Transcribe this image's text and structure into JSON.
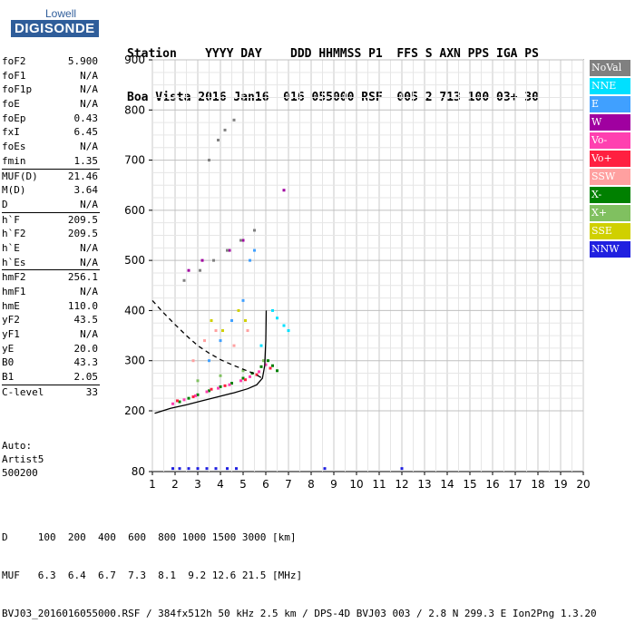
{
  "logo": {
    "top": "Lowell",
    "main": "DIGISONDE"
  },
  "header": {
    "labels": "Station    YYYY DAY    DDD HHMMSS P1  FFS S AXN PPS IGA PS",
    "values": "Boa Vista 2016 Jan16  016 055000 RSF  005 2 713 100 03+ 30"
  },
  "params": [
    {
      "label": "foF2",
      "value": "5.900"
    },
    {
      "label": "foF1",
      "value": "N/A"
    },
    {
      "label": "foF1p",
      "value": "N/A"
    },
    {
      "label": "foE",
      "value": "N/A"
    },
    {
      "label": "foEp",
      "value": "0.43"
    },
    {
      "label": "fxI",
      "value": "6.45"
    },
    {
      "label": "foEs",
      "value": "N/A"
    },
    {
      "label": "fmin",
      "value": "1.35"
    },
    {
      "label": "MUF(D)",
      "value": "21.46",
      "sep": true
    },
    {
      "label": "M(D)",
      "value": "3.64"
    },
    {
      "label": "D",
      "value": "N/A"
    },
    {
      "label": "h`F",
      "value": "209.5",
      "sep": true
    },
    {
      "label": "h`F2",
      "value": "209.5"
    },
    {
      "label": "h`E",
      "value": "N/A"
    },
    {
      "label": "h`Es",
      "value": "N/A"
    },
    {
      "label": "hmF2",
      "value": "256.1",
      "sep": true
    },
    {
      "label": "hmF1",
      "value": "N/A"
    },
    {
      "label": "hmE",
      "value": "110.0"
    },
    {
      "label": "yF2",
      "value": "43.5"
    },
    {
      "label": "yF1",
      "value": "N/A"
    },
    {
      "label": "yE",
      "value": "20.0"
    },
    {
      "label": "B0",
      "value": "43.3"
    },
    {
      "label": "B1",
      "value": "2.05"
    },
    {
      "label": "C-level",
      "value": "33",
      "sep": true
    }
  ],
  "auto": {
    "line1": "Auto:",
    "line2": "Artist5",
    "line3": "500200"
  },
  "legend": [
    {
      "label": "NoVal",
      "color": "#808080"
    },
    {
      "label": "NNE",
      "color": "#00e0ff"
    },
    {
      "label": "E",
      "color": "#40a0ff"
    },
    {
      "label": "W",
      "color": "#a000a0"
    },
    {
      "label": "Vo-",
      "color": "#ff40b0"
    },
    {
      "label": "Vo+",
      "color": "#ff2040"
    },
    {
      "label": "SSW",
      "color": "#ffa0a0"
    },
    {
      "label": "X-",
      "color": "#008000"
    },
    {
      "label": "X+",
      "color": "#80c060"
    },
    {
      "label": "SSE",
      "color": "#d0d000"
    },
    {
      "label": "NNW",
      "color": "#2020e0"
    }
  ],
  "bottom": {
    "line1": "D     100  200  400  600  800 1000 1500 3000 [km]",
    "line2": "MUF   6.3  6.4  6.7  7.3  8.1  9.2 12.6 21.5 [MHz]",
    "line3": "BVJ03_2016016055000.RSF / 384fx512h 50 kHz 2.5 km / DPS-4D BVJ03 003 / 2.8 N 299.3 E Ion2Png 1.3.20"
  },
  "chart_data": {
    "type": "scatter",
    "title": "",
    "xlabel": "",
    "ylabel": "",
    "xlim": [
      1,
      20
    ],
    "ylim": [
      80,
      900
    ],
    "x_ticks": [
      1,
      2,
      3,
      4,
      5,
      6,
      7,
      8,
      9,
      10,
      11,
      12,
      13,
      14,
      15,
      16,
      17,
      18,
      19,
      20
    ],
    "y_ticks": [
      80,
      200,
      300,
      400,
      500,
      600,
      700,
      800,
      900
    ],
    "grid": true,
    "series": [
      {
        "name": "X-",
        "color": "#008000",
        "points": [
          [
            2.2,
            218
          ],
          [
            2.6,
            225
          ],
          [
            3.0,
            232
          ],
          [
            3.5,
            240
          ],
          [
            4.0,
            248
          ],
          [
            4.5,
            255
          ],
          [
            5.0,
            265
          ],
          [
            5.4,
            275
          ],
          [
            5.8,
            288
          ],
          [
            6.1,
            300
          ],
          [
            6.3,
            290
          ],
          [
            6.5,
            280
          ]
        ]
      },
      {
        "name": "Vo-",
        "color": "#ff40b0",
        "points": [
          [
            1.9,
            214
          ],
          [
            2.4,
            222
          ],
          [
            2.9,
            230
          ],
          [
            3.4,
            238
          ],
          [
            3.9,
            245
          ],
          [
            4.4,
            252
          ],
          [
            4.9,
            260
          ],
          [
            5.3,
            268
          ],
          [
            5.7,
            278
          ],
          [
            6.0,
            292
          ]
        ]
      },
      {
        "name": "Vo+",
        "color": "#ff2040",
        "points": [
          [
            2.1,
            220
          ],
          [
            2.8,
            228
          ],
          [
            3.6,
            243
          ],
          [
            4.2,
            250
          ],
          [
            5.1,
            262
          ],
          [
            5.6,
            272
          ],
          [
            6.2,
            285
          ]
        ]
      },
      {
        "name": "NNE",
        "color": "#00e0ff",
        "points": [
          [
            6.5,
            385
          ],
          [
            6.8,
            370
          ],
          [
            7.0,
            360
          ],
          [
            5.8,
            330
          ],
          [
            6.3,
            400
          ]
        ]
      },
      {
        "name": "E",
        "color": "#40a0ff",
        "points": [
          [
            3.5,
            300
          ],
          [
            4.0,
            340
          ],
          [
            4.5,
            380
          ],
          [
            5.0,
            420
          ],
          [
            5.3,
            500
          ],
          [
            5.5,
            520
          ]
        ]
      },
      {
        "name": "W",
        "color": "#a000a0",
        "points": [
          [
            6.8,
            640
          ],
          [
            2.6,
            480
          ],
          [
            3.2,
            500
          ],
          [
            4.4,
            520
          ],
          [
            5.0,
            540
          ]
        ]
      },
      {
        "name": "SSW",
        "color": "#ffa0a0",
        "points": [
          [
            2.8,
            300
          ],
          [
            3.3,
            340
          ],
          [
            3.8,
            360
          ],
          [
            4.6,
            330
          ],
          [
            5.2,
            360
          ]
        ]
      },
      {
        "name": "X+",
        "color": "#80c060",
        "points": [
          [
            3.0,
            260
          ],
          [
            4.0,
            270
          ],
          [
            5.0,
            280
          ],
          [
            5.9,
            300
          ]
        ]
      },
      {
        "name": "SSE",
        "color": "#d0d000",
        "points": [
          [
            3.6,
            380
          ],
          [
            4.1,
            360
          ],
          [
            4.8,
            400
          ],
          [
            5.1,
            380
          ]
        ]
      },
      {
        "name": "NoVal",
        "color": "#808080",
        "points": [
          [
            2.4,
            460
          ],
          [
            3.1,
            480
          ],
          [
            3.7,
            500
          ],
          [
            4.3,
            520
          ],
          [
            4.9,
            540
          ],
          [
            5.5,
            560
          ],
          [
            3.5,
            700
          ],
          [
            3.9,
            740
          ],
          [
            4.2,
            760
          ],
          [
            4.6,
            780
          ]
        ]
      },
      {
        "name": "NNW",
        "color": "#2020e0",
        "points": [
          [
            1.9,
            86
          ],
          [
            2.2,
            86
          ],
          [
            2.6,
            86
          ],
          [
            3.0,
            86
          ],
          [
            3.4,
            86
          ],
          [
            3.8,
            86
          ],
          [
            4.3,
            86
          ],
          [
            4.7,
            86
          ],
          [
            8.6,
            86
          ],
          [
            12.0,
            86
          ]
        ]
      }
    ],
    "curves": {
      "profile_solid": [
        [
          1.1,
          195
        ],
        [
          1.8,
          205
        ],
        [
          2.5,
          212
        ],
        [
          3.2,
          220
        ],
        [
          3.9,
          228
        ],
        [
          4.6,
          236
        ],
        [
          5.2,
          244
        ],
        [
          5.6,
          252
        ],
        [
          5.85,
          265
        ],
        [
          5.95,
          290
        ],
        [
          6.0,
          340
        ],
        [
          6.02,
          400
        ]
      ],
      "profile_dashed": [
        [
          1.0,
          420
        ],
        [
          1.5,
          395
        ],
        [
          2.0,
          372
        ],
        [
          2.5,
          350
        ],
        [
          3.0,
          330
        ],
        [
          3.5,
          315
        ],
        [
          4.0,
          302
        ],
        [
          4.5,
          292
        ],
        [
          5.0,
          283
        ],
        [
          5.5,
          274
        ],
        [
          5.85,
          265
        ]
      ]
    }
  }
}
